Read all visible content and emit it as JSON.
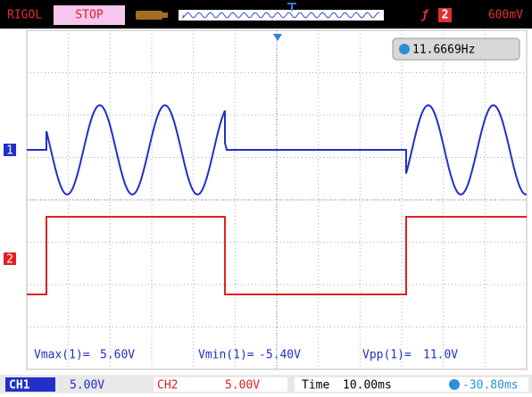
{
  "header": {
    "brand": "RIGOL",
    "status": "STOP",
    "trigger_channel": "2",
    "trigger_level": "600mV"
  },
  "frequency": "11.6669Hz",
  "channels": [
    {
      "marker": "1"
    },
    {
      "marker": "2"
    }
  ],
  "measurements": [
    {
      "label": "Vmax(1)=",
      "value": "5.60V"
    },
    {
      "label": "Vmin(1)=",
      "value": "-5.40V"
    },
    {
      "label": "Vpp(1)=",
      "value": "11.0V"
    }
  ],
  "footer": {
    "ch1": {
      "label": "CH1",
      "scale": "5.00V"
    },
    "ch2": {
      "label": "CH2",
      "scale": "5.00V"
    },
    "time": {
      "label": "Time",
      "value": "10.00ms"
    },
    "trigger_offset": "-30.80ms"
  }
}
